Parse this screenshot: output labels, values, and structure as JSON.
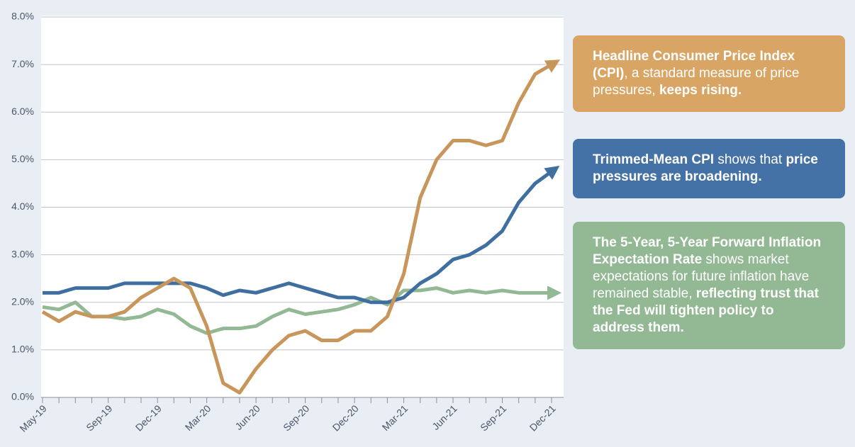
{
  "chart_data": {
    "type": "line",
    "categories": [
      "May-19",
      null,
      null,
      null,
      "Sep-19",
      null,
      null,
      "Dec-19",
      null,
      null,
      "Mar-20",
      null,
      null,
      "Jun-20",
      null,
      null,
      "Sep-20",
      null,
      null,
      "Dec-20",
      null,
      null,
      "Mar-21",
      null,
      null,
      "Jun-21",
      null,
      null,
      "Sep-21",
      null,
      null,
      "Dec-21"
    ],
    "series": [
      {
        "name": "Headline Consumer Price Index (CPI)",
        "color": "#c8955a",
        "values": [
          1.8,
          1.6,
          1.8,
          1.7,
          1.7,
          1.8,
          2.1,
          2.3,
          2.5,
          2.3,
          1.5,
          0.3,
          0.1,
          0.6,
          1.0,
          1.3,
          1.4,
          1.2,
          1.2,
          1.4,
          1.4,
          1.7,
          2.6,
          4.2,
          5.0,
          5.4,
          5.4,
          5.3,
          5.4,
          6.2,
          6.8,
          7.0
        ]
      },
      {
        "name": "Trimmed-Mean CPI",
        "color": "#3f6fa0",
        "values": [
          2.2,
          2.2,
          2.3,
          2.3,
          2.3,
          2.4,
          2.4,
          2.4,
          2.4,
          2.4,
          2.3,
          2.15,
          2.25,
          2.2,
          2.3,
          2.4,
          2.3,
          2.2,
          2.1,
          2.1,
          2.0,
          2.0,
          2.1,
          2.4,
          2.6,
          2.9,
          3.0,
          3.2,
          3.5,
          4.1,
          4.5,
          4.75
        ]
      },
      {
        "name": "The 5-Year, 5-Year Forward Inflation Expectation Rate",
        "color": "#93b894",
        "values": [
          1.9,
          1.85,
          2.0,
          1.7,
          1.7,
          1.65,
          1.7,
          1.85,
          1.75,
          1.5,
          1.35,
          1.45,
          1.45,
          1.5,
          1.7,
          1.85,
          1.75,
          1.8,
          1.85,
          1.95,
          2.1,
          1.95,
          2.25,
          2.25,
          2.3,
          2.2,
          2.25,
          2.2,
          2.25,
          2.2,
          2.2,
          2.2
        ]
      }
    ],
    "ylim": [
      0,
      8
    ],
    "yticks": [
      {
        "value": 0,
        "label": "0.0%"
      },
      {
        "value": 1,
        "label": "1.0%"
      },
      {
        "value": 2,
        "label": "2.0%"
      },
      {
        "value": 3,
        "label": "3.0%"
      },
      {
        "value": 4,
        "label": "4.0%"
      },
      {
        "value": 5,
        "label": "5.0%"
      },
      {
        "value": 6,
        "label": "6.0%"
      },
      {
        "value": 7,
        "label": "7.0%"
      },
      {
        "value": 8,
        "label": "8.0%"
      }
    ],
    "grid": true,
    "annotations": [
      {
        "color": "#d9a564",
        "segments": [
          {
            "text": "Headline Consumer Price Index (CPI)",
            "bold": true
          },
          {
            "text": ", a standard measure of price pressures, ",
            "bold": false
          },
          {
            "text": "keeps rising.",
            "bold": true
          }
        ]
      },
      {
        "color": "#4472a6",
        "segments": [
          {
            "text": "Trimmed-Mean CPI",
            "bold": true
          },
          {
            "text": " shows that ",
            "bold": false
          },
          {
            "text": "price pressures are broadening.",
            "bold": true
          }
        ]
      },
      {
        "color": "#93b894",
        "segments": [
          {
            "text": "The 5-Year, 5-Year Forward Inflation Expectation Rate",
            "bold": true
          },
          {
            "text": " shows market expectations for future inflation have remained stable, ",
            "bold": false
          },
          {
            "text": "reflecting trust that the Fed will tighten policy to address them.",
            "bold": true
          }
        ]
      }
    ]
  }
}
